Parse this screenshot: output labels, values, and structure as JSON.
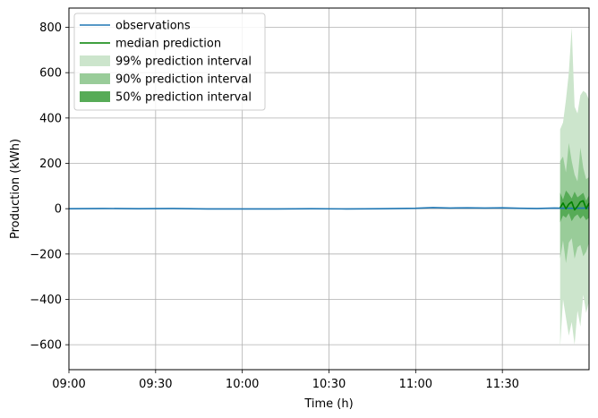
{
  "chart_data": {
    "type": "line",
    "xlabel": "Time (h)",
    "ylabel": "Production (kWh)",
    "xlim": [
      0,
      90
    ],
    "ylim": [
      -710,
      885
    ],
    "grid": true,
    "legend_position": "top-left",
    "x_ticks": [
      {
        "value": 0,
        "label": "09:00"
      },
      {
        "value": 15,
        "label": "09:30"
      },
      {
        "value": 30,
        "label": "10:00"
      },
      {
        "value": 45,
        "label": "10:30"
      },
      {
        "value": 60,
        "label": "11:00"
      },
      {
        "value": 75,
        "label": "11:30"
      }
    ],
    "y_ticks": [
      {
        "value": 800,
        "label": "800"
      },
      {
        "value": 600,
        "label": "600"
      },
      {
        "value": 400,
        "label": "400"
      },
      {
        "value": 200,
        "label": "200"
      },
      {
        "value": 0,
        "label": "0"
      },
      {
        "value": -200,
        "label": "−200"
      },
      {
        "value": -400,
        "label": "−400"
      },
      {
        "value": -600,
        "label": "−600"
      }
    ],
    "legend": [
      {
        "label": "observations",
        "kind": "line",
        "color": "#1f77b4"
      },
      {
        "label": "median prediction",
        "kind": "line",
        "color": "#008000"
      },
      {
        "label": "99% prediction interval",
        "kind": "patch",
        "color": "#cce5cc"
      },
      {
        "label": "90% prediction interval",
        "kind": "patch",
        "color": "#99cc99"
      },
      {
        "label": "50% prediction interval",
        "kind": "patch",
        "color": "#57ab57"
      }
    ],
    "observations": {
      "color": "#1f77b4",
      "x": [
        0,
        6,
        12,
        18,
        24,
        30,
        36,
        42,
        48,
        54,
        60,
        63,
        66,
        69,
        72,
        75,
        78,
        81,
        84,
        87,
        90
      ],
      "y": [
        0,
        1,
        0,
        1,
        -1,
        -1,
        -1,
        0,
        -1,
        0,
        2,
        5,
        3,
        4,
        3,
        4,
        2,
        1,
        3,
        2,
        3
      ]
    },
    "median_prediction": {
      "color": "#008000",
      "x": [
        85,
        85.5,
        86,
        86.5,
        87,
        87.5,
        88,
        88.5,
        89,
        89.5,
        90
      ],
      "y": [
        5,
        25,
        0,
        20,
        30,
        -5,
        10,
        30,
        35,
        0,
        25
      ]
    },
    "intervals": [
      {
        "label": "99% prediction interval",
        "color": "#cce5cc",
        "x": [
          85,
          85.5,
          86,
          86.5,
          87,
          87.5,
          88,
          88.5,
          89,
          89.5,
          90
        ],
        "upper": [
          350,
          380,
          480,
          600,
          800,
          450,
          420,
          500,
          520,
          510,
          480
        ],
        "lower": [
          -610,
          -400,
          -480,
          -560,
          -500,
          -600,
          -450,
          -520,
          -380,
          -460,
          -410
        ]
      },
      {
        "label": "90% prediction interval",
        "color": "#99cc99",
        "x": [
          85,
          85.5,
          86,
          86.5,
          87,
          87.5,
          88,
          88.5,
          89,
          89.5,
          90
        ],
        "upper": [
          210,
          230,
          160,
          290,
          210,
          150,
          120,
          270,
          180,
          130,
          140
        ],
        "lower": [
          -220,
          -140,
          -240,
          -150,
          -130,
          -220,
          -170,
          -160,
          -210,
          -190,
          -150
        ]
      },
      {
        "label": "50% prediction interval",
        "color": "#57ab57",
        "x": [
          85,
          85.5,
          86,
          86.5,
          87,
          87.5,
          88,
          88.5,
          89,
          89.5,
          90
        ],
        "upper": [
          70,
          40,
          80,
          65,
          45,
          75,
          50,
          60,
          70,
          35,
          60
        ],
        "lower": [
          -60,
          -30,
          -40,
          -20,
          -55,
          -35,
          -25,
          -45,
          -30,
          -50,
          -40
        ]
      }
    ]
  }
}
